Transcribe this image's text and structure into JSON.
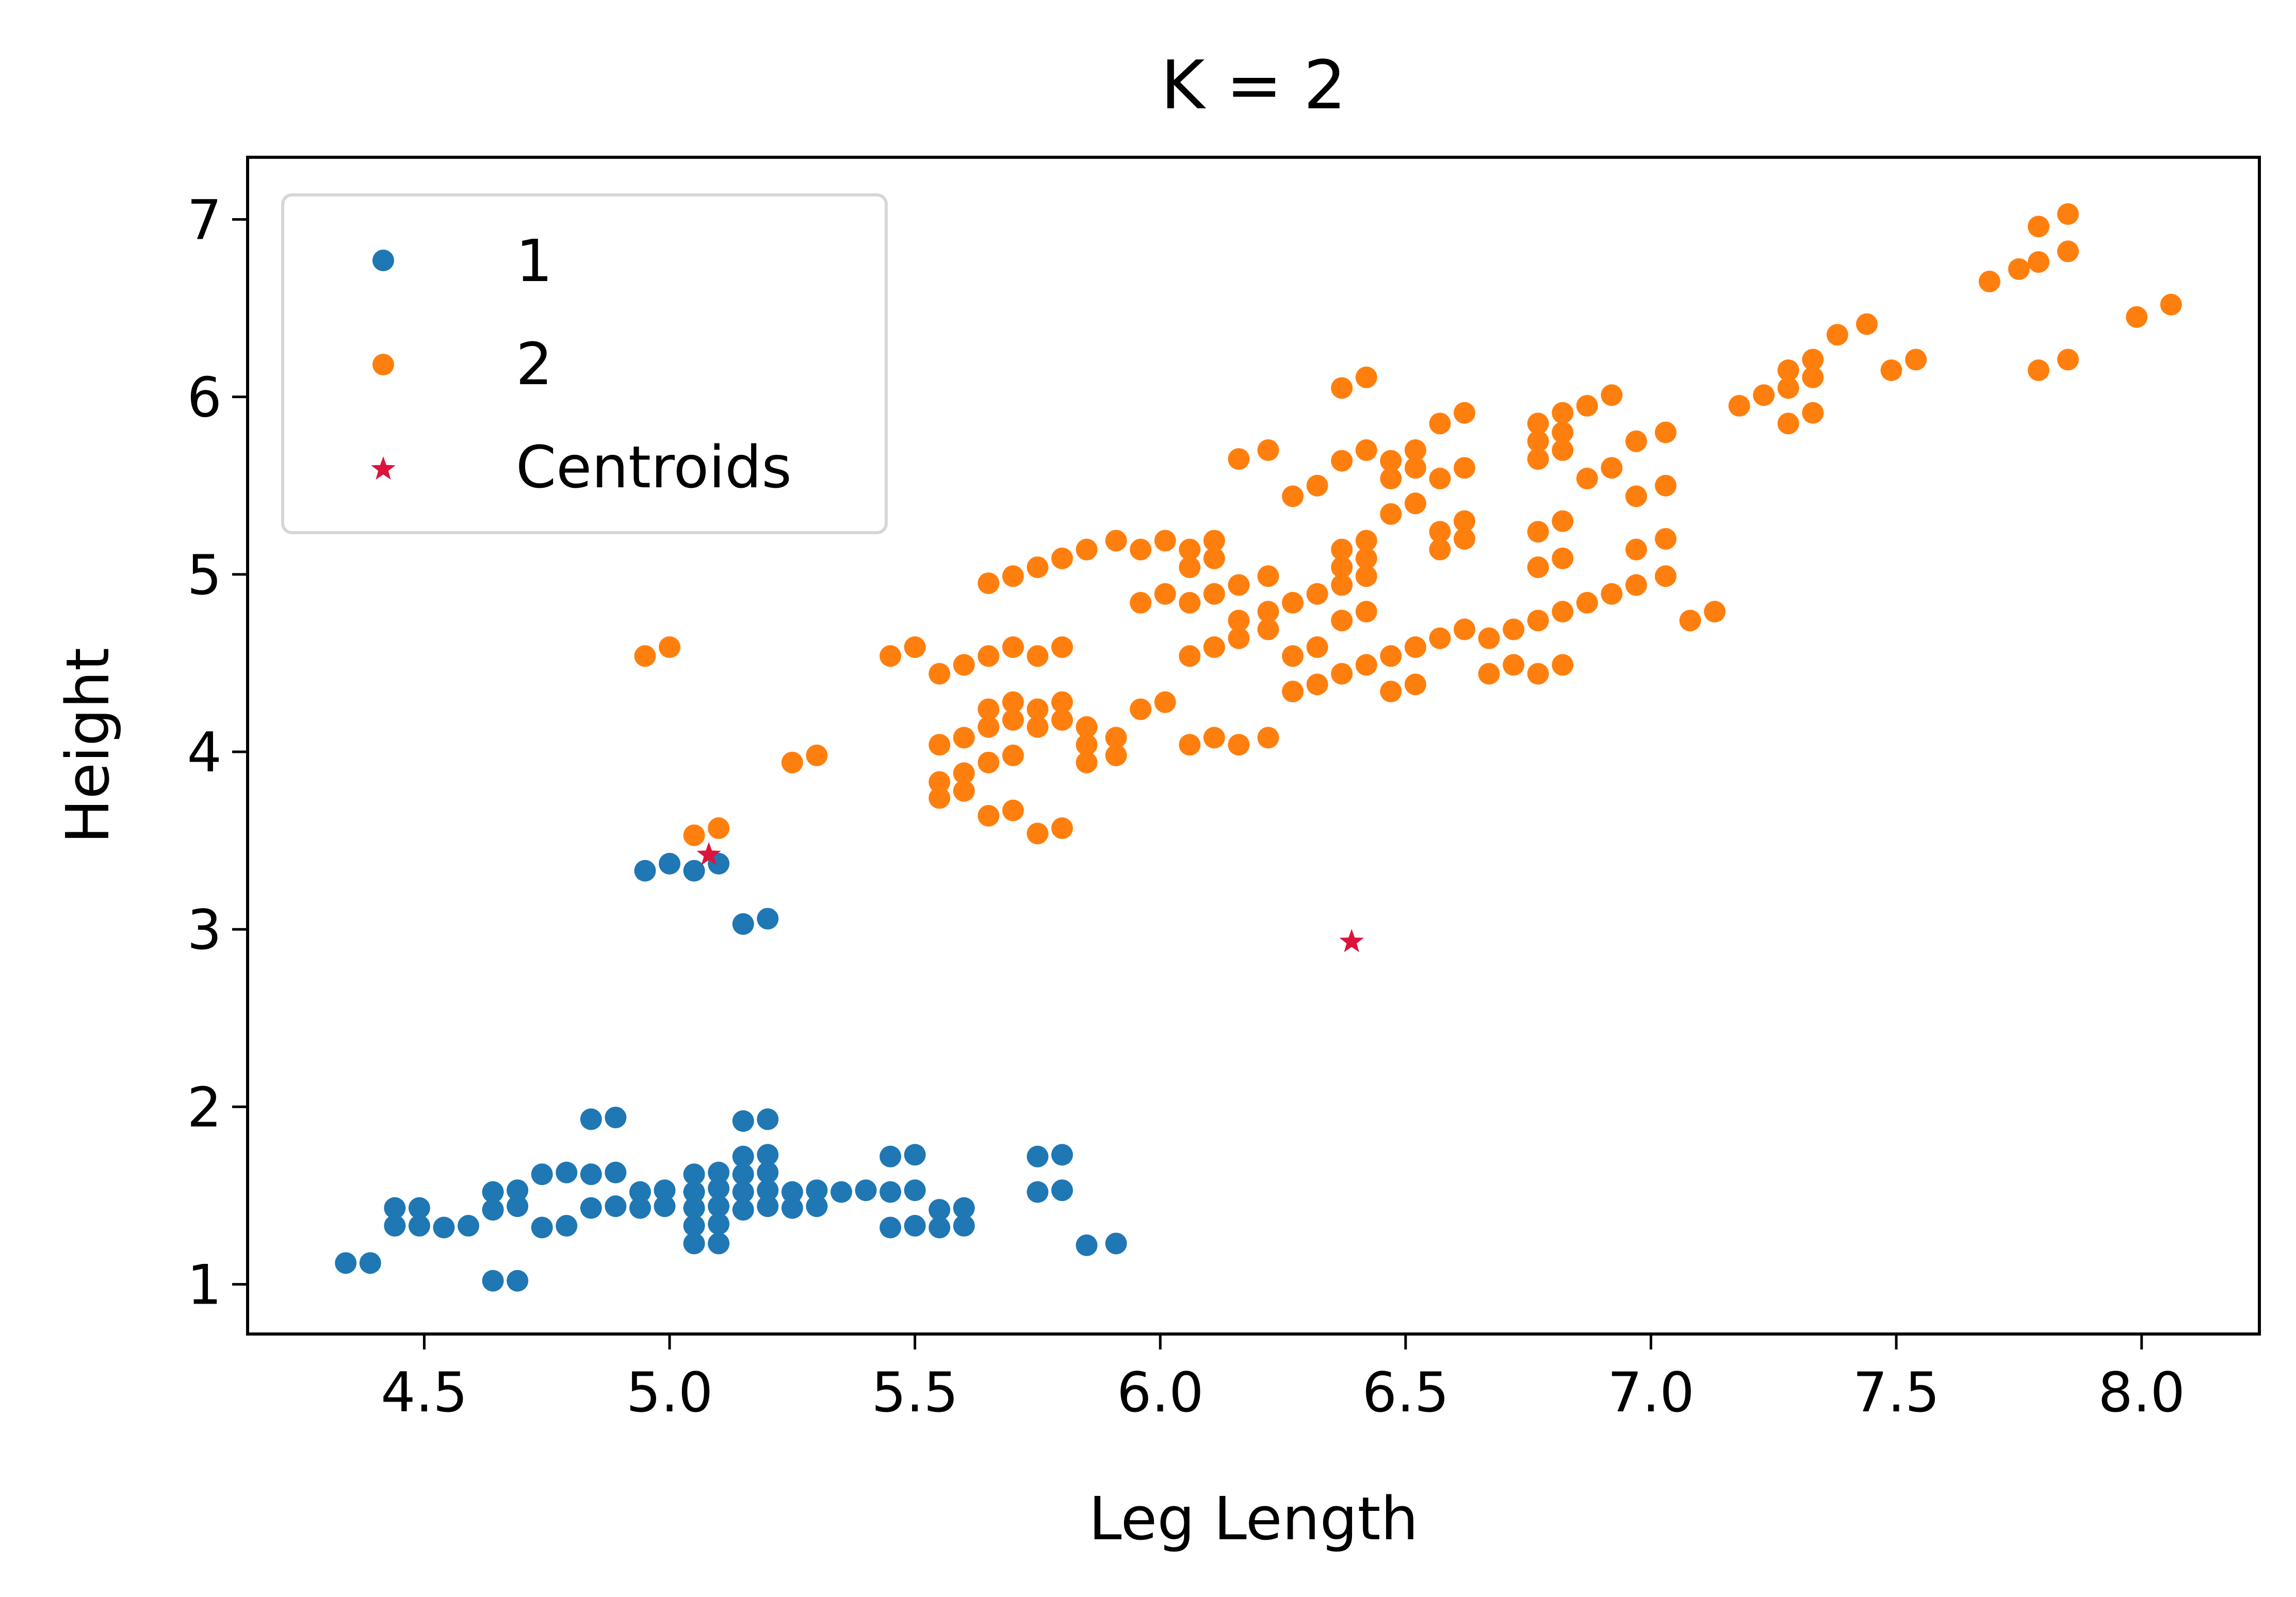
{
  "chart_data": {
    "type": "scatter",
    "title": "K = 2",
    "xlabel": "Leg Length",
    "ylabel": "Height",
    "xlim": [
      4.14,
      8.24
    ],
    "ylim": [
      0.72,
      7.35
    ],
    "xticks": [
      4.5,
      5.0,
      5.5,
      6.0,
      6.5,
      7.0,
      7.5,
      8.0
    ],
    "xtick_labels": [
      "4.5",
      "5.0",
      "5.5",
      "6.0",
      "6.5",
      "7.0",
      "7.5",
      "8.0"
    ],
    "yticks": [
      1,
      2,
      3,
      4,
      5,
      6,
      7
    ],
    "ytick_labels": [
      "1",
      "2",
      "3",
      "4",
      "5",
      "6",
      "7"
    ],
    "grid": false,
    "legend_position": "top-left",
    "series": [
      {
        "name": "1",
        "marker": "circle",
        "color": "#1f77b4",
        "points": [
          [
            4.34,
            1.12
          ],
          [
            4.39,
            1.12
          ],
          [
            4.44,
            1.43
          ],
          [
            4.44,
            1.33
          ],
          [
            4.49,
            1.43
          ],
          [
            4.49,
            1.33
          ],
          [
            4.54,
            1.32
          ],
          [
            4.59,
            1.33
          ],
          [
            4.64,
            1.52
          ],
          [
            4.64,
            1.42
          ],
          [
            4.64,
            1.02
          ],
          [
            4.69,
            1.53
          ],
          [
            4.69,
            1.44
          ],
          [
            4.69,
            1.02
          ],
          [
            4.74,
            1.62
          ],
          [
            4.74,
            1.32
          ],
          [
            4.79,
            1.63
          ],
          [
            4.79,
            1.33
          ],
          [
            4.84,
            1.93
          ],
          [
            4.84,
            1.62
          ],
          [
            4.84,
            1.43
          ],
          [
            4.89,
            1.94
          ],
          [
            4.89,
            1.63
          ],
          [
            4.89,
            1.44
          ],
          [
            4.94,
            1.52
          ],
          [
            4.94,
            1.43
          ],
          [
            4.99,
            1.53
          ],
          [
            4.99,
            1.44
          ],
          [
            5.05,
            1.62
          ],
          [
            5.05,
            1.52
          ],
          [
            5.05,
            1.43
          ],
          [
            5.05,
            1.33
          ],
          [
            5.05,
            1.23
          ],
          [
            5.1,
            1.63
          ],
          [
            5.1,
            1.54
          ],
          [
            5.1,
            1.44
          ],
          [
            5.1,
            1.34
          ],
          [
            5.1,
            1.23
          ],
          [
            5.15,
            1.92
          ],
          [
            5.15,
            1.72
          ],
          [
            5.15,
            1.62
          ],
          [
            5.15,
            1.52
          ],
          [
            5.15,
            1.42
          ],
          [
            5.2,
            1.93
          ],
          [
            5.2,
            1.73
          ],
          [
            5.2,
            1.63
          ],
          [
            5.2,
            1.53
          ],
          [
            5.2,
            1.44
          ],
          [
            5.25,
            1.52
          ],
          [
            5.25,
            1.43
          ],
          [
            5.3,
            1.53
          ],
          [
            5.3,
            1.44
          ],
          [
            5.35,
            1.52
          ],
          [
            5.4,
            1.53
          ],
          [
            5.45,
            1.72
          ],
          [
            5.45,
            1.52
          ],
          [
            5.45,
            1.32
          ],
          [
            5.5,
            1.73
          ],
          [
            5.5,
            1.53
          ],
          [
            5.5,
            1.33
          ],
          [
            5.55,
            1.42
          ],
          [
            5.55,
            1.32
          ],
          [
            5.6,
            1.43
          ],
          [
            5.6,
            1.33
          ],
          [
            5.75,
            1.72
          ],
          [
            5.75,
            1.52
          ],
          [
            5.8,
            1.73
          ],
          [
            5.8,
            1.53
          ],
          [
            5.85,
            1.22
          ],
          [
            5.91,
            1.23
          ],
          [
            4.95,
            3.33
          ],
          [
            5.0,
            3.37
          ],
          [
            5.05,
            3.33
          ],
          [
            5.1,
            3.37
          ],
          [
            5.15,
            3.03
          ],
          [
            5.2,
            3.06
          ]
        ]
      },
      {
        "name": "2",
        "marker": "circle",
        "color": "#ff7f0e",
        "points": [
          [
            4.95,
            4.54
          ],
          [
            5.0,
            4.59
          ],
          [
            5.05,
            3.53
          ],
          [
            5.1,
            3.57
          ],
          [
            5.25,
            3.94
          ],
          [
            5.3,
            3.98
          ],
          [
            5.45,
            4.54
          ],
          [
            5.5,
            4.59
          ],
          [
            5.55,
            4.44
          ],
          [
            5.55,
            4.04
          ],
          [
            5.55,
            3.83
          ],
          [
            5.55,
            3.74
          ],
          [
            5.6,
            4.49
          ],
          [
            5.6,
            4.08
          ],
          [
            5.6,
            3.88
          ],
          [
            5.6,
            3.78
          ],
          [
            5.65,
            4.95
          ],
          [
            5.65,
            4.54
          ],
          [
            5.65,
            4.24
          ],
          [
            5.65,
            4.14
          ],
          [
            5.65,
            3.94
          ],
          [
            5.65,
            3.64
          ],
          [
            5.7,
            4.99
          ],
          [
            5.7,
            4.59
          ],
          [
            5.7,
            4.28
          ],
          [
            5.7,
            4.18
          ],
          [
            5.7,
            3.98
          ],
          [
            5.7,
            3.67
          ],
          [
            5.75,
            5.04
          ],
          [
            5.75,
            4.54
          ],
          [
            5.75,
            4.24
          ],
          [
            5.75,
            4.14
          ],
          [
            5.75,
            3.54
          ],
          [
            5.8,
            5.09
          ],
          [
            5.8,
            4.59
          ],
          [
            5.8,
            4.28
          ],
          [
            5.8,
            4.18
          ],
          [
            5.8,
            3.57
          ],
          [
            5.85,
            5.14
          ],
          [
            5.85,
            4.14
          ],
          [
            5.85,
            4.04
          ],
          [
            5.85,
            3.94
          ],
          [
            5.91,
            5.19
          ],
          [
            5.91,
            4.08
          ],
          [
            5.91,
            3.98
          ],
          [
            5.96,
            5.14
          ],
          [
            5.96,
            4.84
          ],
          [
            5.96,
            4.24
          ],
          [
            6.01,
            5.19
          ],
          [
            6.01,
            4.89
          ],
          [
            6.01,
            4.28
          ],
          [
            6.06,
            5.14
          ],
          [
            6.06,
            5.04
          ],
          [
            6.06,
            4.84
          ],
          [
            6.06,
            4.54
          ],
          [
            6.06,
            4.04
          ],
          [
            6.11,
            5.19
          ],
          [
            6.11,
            5.09
          ],
          [
            6.11,
            4.89
          ],
          [
            6.11,
            4.59
          ],
          [
            6.11,
            4.08
          ],
          [
            6.16,
            5.65
          ],
          [
            6.16,
            4.94
          ],
          [
            6.16,
            4.74
          ],
          [
            6.16,
            4.64
          ],
          [
            6.16,
            4.04
          ],
          [
            6.22,
            5.7
          ],
          [
            6.22,
            4.99
          ],
          [
            6.22,
            4.79
          ],
          [
            6.22,
            4.69
          ],
          [
            6.22,
            4.08
          ],
          [
            6.27,
            5.44
          ],
          [
            6.27,
            4.84
          ],
          [
            6.27,
            4.54
          ],
          [
            6.27,
            4.34
          ],
          [
            6.32,
            5.5
          ],
          [
            6.32,
            4.89
          ],
          [
            6.32,
            4.59
          ],
          [
            6.32,
            4.38
          ],
          [
            6.37,
            6.05
          ],
          [
            6.37,
            5.64
          ],
          [
            6.37,
            5.14
          ],
          [
            6.37,
            5.04
          ],
          [
            6.37,
            4.94
          ],
          [
            6.37,
            4.74
          ],
          [
            6.37,
            4.44
          ],
          [
            6.42,
            6.11
          ],
          [
            6.42,
            5.7
          ],
          [
            6.42,
            5.19
          ],
          [
            6.42,
            5.09
          ],
          [
            6.42,
            4.99
          ],
          [
            6.42,
            4.79
          ],
          [
            6.42,
            4.49
          ],
          [
            6.47,
            5.64
          ],
          [
            6.47,
            5.54
          ],
          [
            6.47,
            5.34
          ],
          [
            6.47,
            4.54
          ],
          [
            6.47,
            4.34
          ],
          [
            6.52,
            5.7
          ],
          [
            6.52,
            5.6
          ],
          [
            6.52,
            5.4
          ],
          [
            6.52,
            4.59
          ],
          [
            6.52,
            4.38
          ],
          [
            6.57,
            5.85
          ],
          [
            6.57,
            5.54
          ],
          [
            6.57,
            5.24
          ],
          [
            6.57,
            5.14
          ],
          [
            6.57,
            4.64
          ],
          [
            6.62,
            5.91
          ],
          [
            6.62,
            5.6
          ],
          [
            6.62,
            5.3
          ],
          [
            6.62,
            5.2
          ],
          [
            6.62,
            4.69
          ],
          [
            6.67,
            4.64
          ],
          [
            6.67,
            4.44
          ],
          [
            6.72,
            4.69
          ],
          [
            6.72,
            4.49
          ],
          [
            6.77,
            5.85
          ],
          [
            6.77,
            5.75
          ],
          [
            6.77,
            5.65
          ],
          [
            6.77,
            5.24
          ],
          [
            6.77,
            5.04
          ],
          [
            6.77,
            4.74
          ],
          [
            6.77,
            4.44
          ],
          [
            6.82,
            5.91
          ],
          [
            6.82,
            5.8
          ],
          [
            6.82,
            5.7
          ],
          [
            6.82,
            5.3
          ],
          [
            6.82,
            5.09
          ],
          [
            6.82,
            4.79
          ],
          [
            6.82,
            4.49
          ],
          [
            6.87,
            5.95
          ],
          [
            6.87,
            5.54
          ],
          [
            6.87,
            4.84
          ],
          [
            6.92,
            6.01
          ],
          [
            6.92,
            5.6
          ],
          [
            6.92,
            4.89
          ],
          [
            6.97,
            5.75
          ],
          [
            6.97,
            5.44
          ],
          [
            6.97,
            5.14
          ],
          [
            6.97,
            4.94
          ],
          [
            7.03,
            5.8
          ],
          [
            7.03,
            5.5
          ],
          [
            7.03,
            5.2
          ],
          [
            7.03,
            4.99
          ],
          [
            7.08,
            4.74
          ],
          [
            7.13,
            4.79
          ],
          [
            7.18,
            5.95
          ],
          [
            7.23,
            6.01
          ],
          [
            7.28,
            6.15
          ],
          [
            7.28,
            6.05
          ],
          [
            7.28,
            5.85
          ],
          [
            7.33,
            6.21
          ],
          [
            7.33,
            6.11
          ],
          [
            7.33,
            5.91
          ],
          [
            7.38,
            6.35
          ],
          [
            7.44,
            6.41
          ],
          [
            7.49,
            6.15
          ],
          [
            7.54,
            6.21
          ],
          [
            7.69,
            6.65
          ],
          [
            7.75,
            6.72
          ],
          [
            7.79,
            6.96
          ],
          [
            7.79,
            6.76
          ],
          [
            7.79,
            6.15
          ],
          [
            7.85,
            7.03
          ],
          [
            7.85,
            6.82
          ],
          [
            7.85,
            6.21
          ],
          [
            7.99,
            6.45
          ],
          [
            8.06,
            6.52
          ]
        ]
      },
      {
        "name": "Centroids",
        "marker": "star",
        "color": "#dc143c",
        "points": [
          [
            5.08,
            3.42
          ],
          [
            6.39,
            2.93
          ]
        ]
      }
    ]
  }
}
